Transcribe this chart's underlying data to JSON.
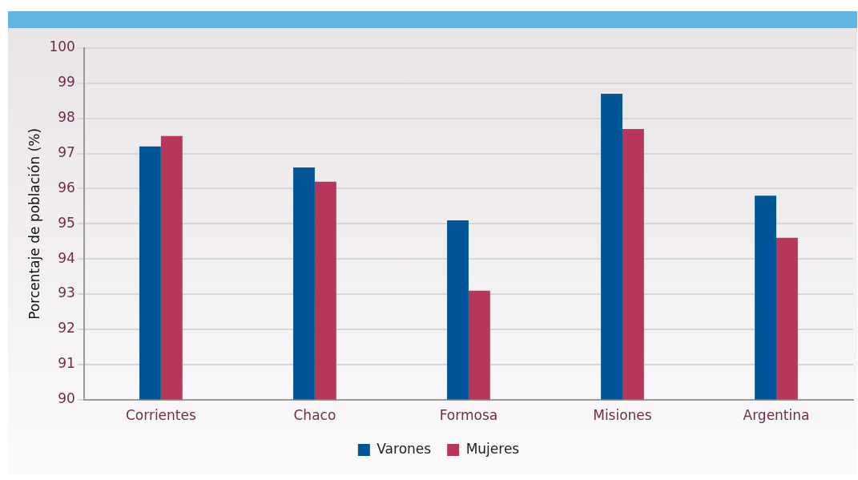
{
  "chart_data": {
    "type": "bar",
    "ylabel": "Porcentaje de población (%)",
    "categories": [
      "Corrientes",
      "Chaco",
      "Formosa",
      "Misiones",
      "Argentina"
    ],
    "series": [
      {
        "name": "Varones",
        "color": "#005696",
        "values": [
          97.2,
          96.6,
          95.1,
          98.7,
          95.8
        ]
      },
      {
        "name": "Mujeres",
        "color": "#b7375a",
        "values": [
          97.5,
          96.2,
          93.1,
          97.7,
          94.6
        ]
      }
    ],
    "ylim": [
      90,
      100
    ],
    "yticks": [
      90,
      91,
      92,
      93,
      94,
      95,
      96,
      97,
      98,
      99,
      100
    ],
    "grid": "y",
    "legend": "bottom"
  }
}
